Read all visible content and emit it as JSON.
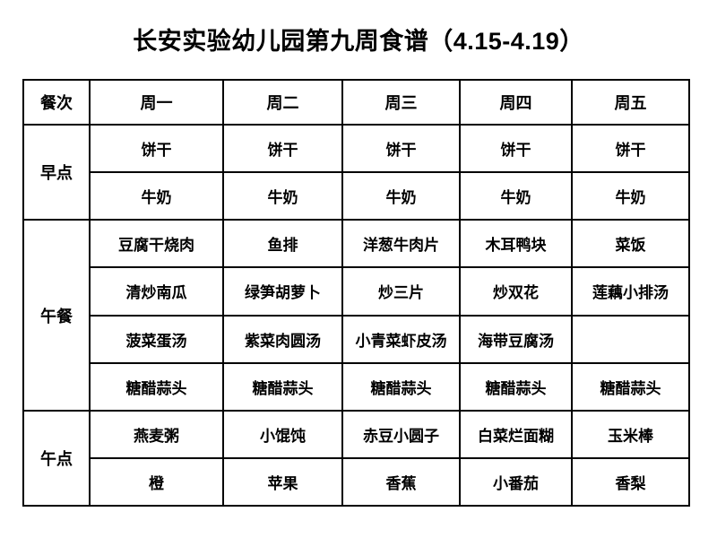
{
  "title": "长安实验幼儿园第九周食谱（4.15-4.19）",
  "table": {
    "corner_header": "餐次",
    "day_headers": [
      "周一",
      "周二",
      "周三",
      "周四",
      "周五"
    ],
    "sections": [
      {
        "label": "早点",
        "rows": [
          [
            "饼干",
            "饼干",
            "饼干",
            "饼干",
            "饼干"
          ],
          [
            "牛奶",
            "牛奶",
            "牛奶",
            "牛奶",
            "牛奶"
          ]
        ]
      },
      {
        "label": "午餐",
        "rows": [
          [
            "豆腐干烧肉",
            "鱼排",
            "洋葱牛肉片",
            "木耳鸭块",
            "菜饭"
          ],
          [
            "清炒南瓜",
            "绿笋胡萝卜",
            "炒三片",
            "炒双花",
            "莲藕小排汤"
          ],
          [
            "菠菜蛋汤",
            "紫菜肉圆汤",
            "小青菜虾皮汤",
            "海带豆腐汤",
            ""
          ],
          [
            "糖醋蒜头",
            "糖醋蒜头",
            "糖醋蒜头",
            "糖醋蒜头",
            "糖醋蒜头"
          ]
        ]
      },
      {
        "label": "午点",
        "rows": [
          [
            "燕麦粥",
            "小馄饨",
            "赤豆小圆子",
            "白菜烂面糊",
            "玉米棒"
          ],
          [
            "橙",
            "苹果",
            "香蕉",
            "小番茄",
            "香梨"
          ]
        ]
      }
    ]
  },
  "colors": {
    "background": "#ffffff",
    "border": "#000000",
    "text": "#000000"
  }
}
